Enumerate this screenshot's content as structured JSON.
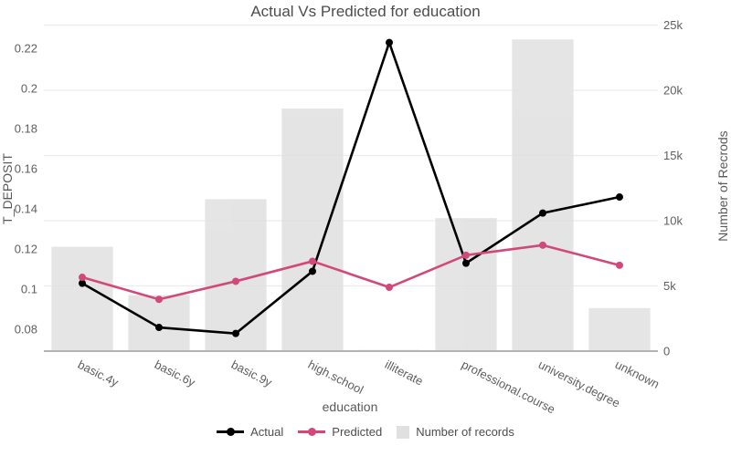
{
  "chart_data": {
    "type": "line+bar",
    "title": "Actual Vs Predicted for education",
    "xlabel": "education",
    "categories": [
      "basic.4y",
      "basic.6y",
      "basic.9y",
      "high.school",
      "illiterate",
      "professional.course",
      "university.degree",
      "unknown"
    ],
    "series": [
      {
        "name": "Actual",
        "type": "line",
        "axis": "left",
        "color": "#000000",
        "values": [
          0.103,
          0.081,
          0.078,
          0.109,
          0.223,
          0.113,
          0.138,
          0.146
        ]
      },
      {
        "name": "Predicted",
        "type": "line",
        "axis": "left",
        "color": "#d1497a",
        "values": [
          0.106,
          0.095,
          0.104,
          0.114,
          0.101,
          0.117,
          0.122,
          0.112
        ]
      },
      {
        "name": "Number of records",
        "type": "bar",
        "axis": "right",
        "color": "#e0e0e0",
        "values": [
          8000,
          4300,
          11650,
          18600,
          100,
          10200,
          23900,
          3300
        ]
      }
    ],
    "left_axis": {
      "title": "T_DEPOSIT",
      "range": [
        0.0692,
        0.2317
      ],
      "ticks": [
        {
          "v": 0.08,
          "label": "0.08"
        },
        {
          "v": 0.1,
          "label": "0.1"
        },
        {
          "v": 0.12,
          "label": "0.12"
        },
        {
          "v": 0.14,
          "label": "0.14"
        },
        {
          "v": 0.16,
          "label": "0.16"
        },
        {
          "v": 0.18,
          "label": "0.18"
        },
        {
          "v": 0.2,
          "label": "0.2"
        },
        {
          "v": 0.22,
          "label": "0.22"
        }
      ]
    },
    "right_axis": {
      "title": "Number of Recrods",
      "range": [
        0,
        25000
      ],
      "ticks": [
        {
          "v": 0,
          "label": "0"
        },
        {
          "v": 5000,
          "label": "5k"
        },
        {
          "v": 10000,
          "label": "10k"
        },
        {
          "v": 15000,
          "label": "15k"
        },
        {
          "v": 20000,
          "label": "20k"
        },
        {
          "v": 25000,
          "label": "25k"
        }
      ]
    },
    "layout": {
      "legend_position": "bottom-center",
      "grid": "horizontal-right-axis",
      "x_tick_angle": 27,
      "bar_opacity": 0.85
    },
    "colors": {
      "grid": "#ececec",
      "axis_line": "#b3b3b3",
      "tick_text": "#5f5f5f",
      "title_text": "#4d4d4d"
    }
  }
}
